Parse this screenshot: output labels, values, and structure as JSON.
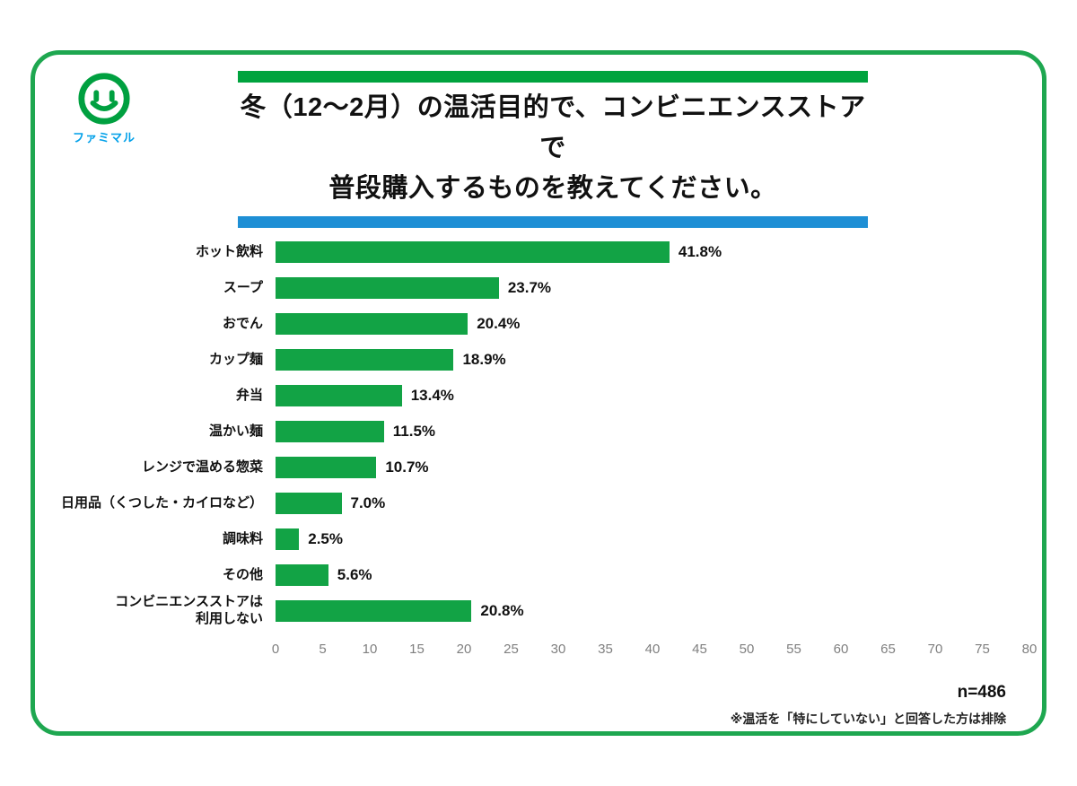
{
  "logo": {
    "brand": "ファミマル"
  },
  "title": {
    "line1": "冬（12～2月）の温活目的で、コンビニエンスストアで",
    "line2": "普段購入するものを教えてください。"
  },
  "footer": {
    "sample": "n=486",
    "note": "※温活を「特にしていない」と回答した方は排除"
  },
  "colors": {
    "border_green": "#1ea750",
    "title_top_bar": "#00a33e",
    "title_bottom_bar": "#1e8fd5",
    "bar_green": "#12a345",
    "brand_blue": "#00a0e9",
    "logo_green": "#00a040",
    "axis_gray": "#7f7f7f"
  },
  "chart_data": {
    "type": "bar",
    "orientation": "horizontal",
    "title": "冬（12～2月）の温活目的で、コンビニエンスストアで普段購入するものを教えてください。",
    "categories": [
      "ホット飲料",
      "スープ",
      "おでん",
      "カップ麺",
      "弁当",
      "温かい麺",
      "レンジで温める惣菜",
      "日用品（くつした・カイロなど）",
      "調味料",
      "その他",
      "コンビニエンスストアは\n利用しない"
    ],
    "values": [
      41.8,
      23.7,
      20.4,
      18.9,
      13.4,
      11.5,
      10.7,
      7.0,
      2.5,
      5.6,
      20.8
    ],
    "value_labels": [
      "41.8%",
      "23.7%",
      "20.4%",
      "18.9%",
      "13.4%",
      "11.5%",
      "10.7%",
      "7.0%",
      "2.5%",
      "5.6%",
      "20.8%"
    ],
    "xlim": [
      0,
      80
    ],
    "xticks": [
      0,
      5,
      10,
      15,
      20,
      25,
      30,
      35,
      40,
      45,
      50,
      55,
      60,
      65,
      70,
      75,
      80
    ],
    "grid": false,
    "legend": false,
    "bar_color": "#12a345",
    "sample_size": "n=486"
  }
}
